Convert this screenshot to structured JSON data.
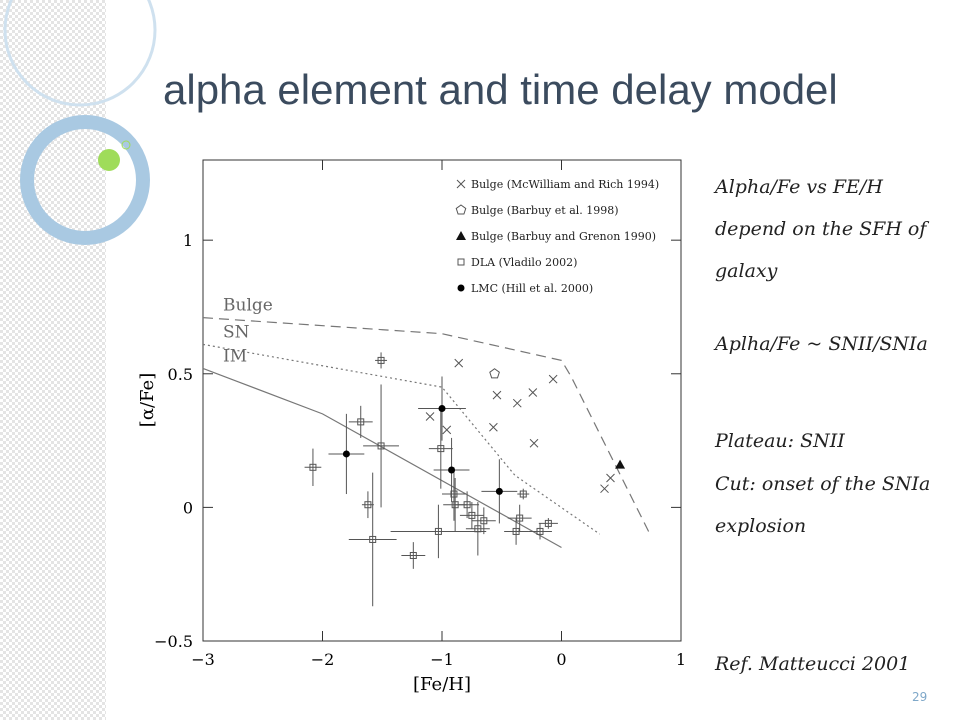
{
  "title": "alpha element and time delay model",
  "notes": [
    "Alpha/Fe vs FE/H depend on the SFH of galaxy",
    "Aplha/Fe ~ SNII/SNIa",
    "Plateau: SNII",
    "Cut: onset of the SNIa explosion"
  ],
  "reference": "Ref. Matteucci 2001",
  "page_number": "29",
  "chart_data": {
    "type": "scatter",
    "xlabel": "[Fe/H]",
    "ylabel": "[α/Fe]",
    "xlim": [
      -3,
      1
    ],
    "ylim": [
      -0.5,
      1.3
    ],
    "xticks": [
      {
        "value": -3,
        "label": "−3"
      },
      {
        "value": -2,
        "label": "−2"
      },
      {
        "value": -1,
        "label": "−1"
      },
      0,
      1
    ],
    "yticks": [
      {
        "value": -0.5,
        "label": "−0.5"
      },
      0,
      0.5,
      1
    ],
    "legend": "upper right",
    "series": [
      {
        "name": "Bulge (McWilliam and Rich 1994)",
        "marker": "x",
        "color": "#555555",
        "x": [
          -0.86,
          -1.1,
          -0.96,
          -0.54,
          -0.37,
          -0.24,
          -0.07,
          -0.57,
          -0.23,
          0.36,
          0.41
        ],
        "values": [
          0.54,
          0.34,
          0.29,
          0.42,
          0.39,
          0.43,
          0.48,
          0.3,
          0.24,
          0.07,
          0.11
        ]
      },
      {
        "name": "Bulge (Barbuy et al. 1998)",
        "marker": "pentagon",
        "color": "#555555",
        "x": [
          -0.56
        ],
        "values": [
          0.5
        ]
      },
      {
        "name": "Bulge (Barbuy and Grenon 1990)",
        "marker": "triangle",
        "color": "#111111",
        "x": [
          0.49
        ],
        "values": [
          0.16
        ]
      },
      {
        "name": "DLA (Vladilo 2002)",
        "marker": "square",
        "color": "#555555",
        "x": [
          -2.08,
          -1.51,
          -1.68,
          -1.62,
          -1.58,
          -1.51,
          -1.24,
          -1.03,
          -1.01,
          -0.9,
          -0.89,
          -0.79,
          -0.75,
          -0.65,
          -0.7,
          -0.38,
          -0.32,
          -0.35,
          -0.11,
          -0.18
        ],
        "values": [
          0.15,
          0.55,
          0.32,
          0.01,
          -0.12,
          0.23,
          -0.18,
          -0.09,
          0.22,
          0.05,
          0.01,
          0.01,
          -0.03,
          -0.05,
          -0.08,
          -0.09,
          0.05,
          -0.04,
          -0.06,
          -0.09
        ],
        "xerr": [
          0.07,
          0.05,
          0.1,
          0.05,
          0.2,
          0.15,
          0.1,
          0.4,
          0.1,
          0.1,
          0.1,
          0.1,
          0.1,
          0.1,
          0.1,
          0.1,
          0.05,
          0.1,
          0.08,
          0.1
        ],
        "yerr": [
          0.07,
          0.03,
          0.06,
          0.05,
          0.25,
          0.23,
          0.05,
          0.1,
          0.15,
          0.1,
          0.1,
          0.05,
          0.05,
          0.05,
          0.1,
          0.05,
          0.02,
          0.05,
          0.02,
          0.03
        ]
      },
      {
        "name": "LMC (Hill et al. 2000)",
        "marker": "circle",
        "color": "#000000",
        "x": [
          -1.8,
          -1.0,
          -0.92,
          -0.52
        ],
        "values": [
          0.2,
          0.37,
          0.14,
          0.06
        ],
        "xerr": [
          0.15,
          0.2,
          0.15,
          0.15
        ],
        "yerr": [
          0.15,
          0.12,
          0.12,
          0.12
        ]
      }
    ],
    "models": [
      {
        "label": "Bulge",
        "style": "dashed",
        "x": [
          -3,
          -1,
          0,
          0.08,
          0.74
        ],
        "values": [
          0.71,
          0.65,
          0.55,
          0.49,
          -0.1
        ]
      },
      {
        "label": "SN",
        "style": "dotted",
        "x": [
          -3,
          -1,
          -0.39,
          0.32
        ],
        "values": [
          0.61,
          0.45,
          0.12,
          -0.1
        ]
      },
      {
        "label": "IM",
        "style": "solid",
        "x": [
          -3,
          -2,
          0
        ],
        "values": [
          0.52,
          0.35,
          -0.15
        ]
      }
    ]
  }
}
